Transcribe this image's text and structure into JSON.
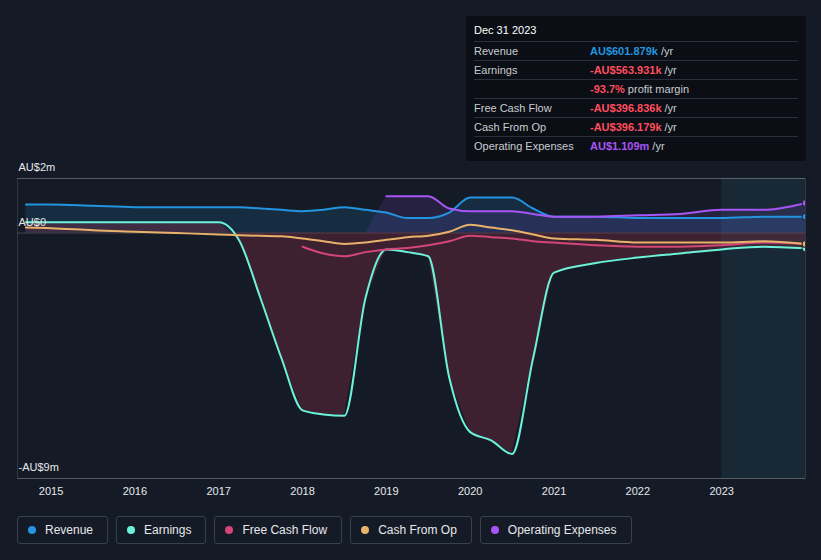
{
  "chart_data": {
    "type": "line",
    "x": [
      2014.7,
      2015,
      2015.5,
      2016,
      2016.5,
      2017,
      2017.25,
      2017.5,
      2017.75,
      2018,
      2018.25,
      2018.5,
      2018.75,
      2019,
      2019.25,
      2019.5,
      2019.75,
      2020,
      2020.25,
      2020.5,
      2020.75,
      2021,
      2021.5,
      2022,
      2022.5,
      2023,
      2023.5,
      2024
    ],
    "series": [
      {
        "name": "Revenue",
        "color": "#2394df",
        "values": [
          1.05,
          1.05,
          1.0,
          0.95,
          0.95,
          0.95,
          0.95,
          0.9,
          0.85,
          0.8,
          0.85,
          0.95,
          0.85,
          0.75,
          0.55,
          0.55,
          0.75,
          1.3,
          1.3,
          1.3,
          0.9,
          0.6,
          0.6,
          0.55,
          0.55,
          0.55,
          0.6,
          0.6
        ]
      },
      {
        "name": "Earnings",
        "color": "#6cf2d8",
        "values": [
          0.4,
          0.4,
          0.4,
          0.4,
          0.4,
          0.4,
          -0.3,
          -2.4,
          -4.6,
          -6.5,
          -6.65,
          -6.7,
          -2.4,
          -0.6,
          -0.7,
          -0.85,
          -5.3,
          -7.3,
          -7.6,
          -8.1,
          -4.6,
          -1.45,
          -1.1,
          -0.9,
          -0.75,
          -0.6,
          -0.5,
          -0.56
        ]
      },
      {
        "name": "Free Cash Flow",
        "color": "#d2467a",
        "values": [
          null,
          null,
          null,
          null,
          null,
          null,
          null,
          null,
          null,
          -0.5,
          -0.75,
          -0.85,
          -0.7,
          -0.6,
          -0.55,
          -0.45,
          -0.3,
          -0.1,
          -0.15,
          -0.2,
          -0.3,
          -0.35,
          -0.45,
          -0.5,
          -0.5,
          -0.45,
          -0.35,
          -0.4
        ]
      },
      {
        "name": "Cash From Op",
        "color": "#e8b26a",
        "values": [
          0.2,
          0.18,
          0.1,
          0.05,
          0.0,
          -0.05,
          -0.08,
          -0.1,
          -0.12,
          -0.2,
          -0.3,
          -0.4,
          -0.35,
          -0.25,
          -0.15,
          -0.1,
          0.05,
          0.3,
          0.2,
          0.1,
          -0.05,
          -0.2,
          -0.25,
          -0.35,
          -0.35,
          -0.35,
          -0.3,
          -0.4
        ]
      },
      {
        "name": "Operating Expenses",
        "color": "#a855f7",
        "values": [
          null,
          null,
          null,
          null,
          null,
          null,
          null,
          null,
          null,
          null,
          null,
          null,
          null,
          1.35,
          1.35,
          1.35,
          0.9,
          0.8,
          0.8,
          0.8,
          0.7,
          0.6,
          0.6,
          0.65,
          0.7,
          0.85,
          0.85,
          1.1
        ]
      }
    ],
    "xlim": [
      2014.6,
      2024.0
    ],
    "xticks": [
      2015,
      2016,
      2017,
      2018,
      2019,
      2020,
      2021,
      2022,
      2023
    ],
    "ylim": [
      -9,
      2
    ],
    "yticks": [
      {
        "value": 2,
        "label": "AU$2m"
      },
      {
        "value": 0,
        "label": "AU$0"
      },
      {
        "value": -9,
        "label": "-AU$9m"
      }
    ],
    "grid": true,
    "legend": "bottom",
    "tooltip": {
      "title": "Dec 31 2023",
      "rows": [
        {
          "label": "Revenue",
          "value": "AU$601.879k",
          "unit": "/yr",
          "color": "#2394df"
        },
        {
          "label": "Earnings",
          "value": "-AU$563.931k",
          "unit": "/yr",
          "color": "#ff4d5e"
        },
        {
          "value": "-93.7%",
          "unit": "profit margin",
          "color": "#ff4d5e"
        },
        {
          "label": "Free Cash Flow",
          "value": "-AU$396.836k",
          "unit": "/yr",
          "color": "#ff4d5e"
        },
        {
          "label": "Cash From Op",
          "value": "-AU$396.179k",
          "unit": "/yr",
          "color": "#ff4d5e"
        },
        {
          "label": "Operating Expenses",
          "value": "AU$1.109m",
          "unit": "/yr",
          "color": "#a855f7"
        }
      ]
    }
  }
}
